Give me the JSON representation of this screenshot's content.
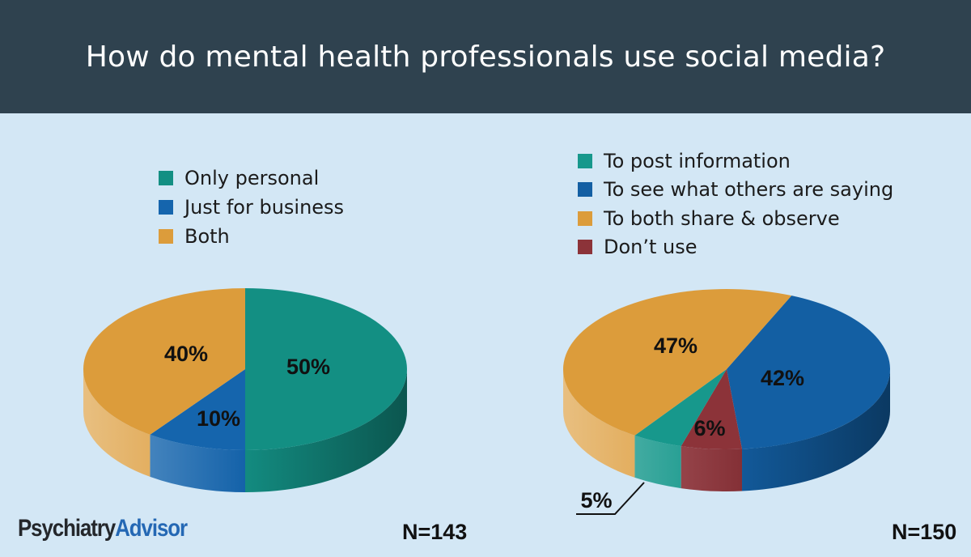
{
  "header": {
    "title": "How do mental health professionals use social media?"
  },
  "brand": {
    "part1": "Psychiatry",
    "part2": "Advisor"
  },
  "chart_data": [
    {
      "type": "pie",
      "title": "",
      "n_label": "N=143",
      "legend_position": "top-left",
      "slices": [
        {
          "name": "Only personal",
          "value": 50,
          "label": "50%",
          "color": "#138f83"
        },
        {
          "name": "Just for business",
          "value": 10,
          "label": "10%",
          "color": "#1565ad"
        },
        {
          "name": "Both",
          "value": 40,
          "label": "40%",
          "color": "#dc9c3b"
        }
      ]
    },
    {
      "type": "pie",
      "title": "",
      "n_label": "N=150",
      "legend_position": "top",
      "slices": [
        {
          "name": "To post information",
          "value": 5,
          "label": "5%",
          "color": "#17988c"
        },
        {
          "name": "To see what others are saying",
          "value": 42,
          "label": "42%",
          "color": "#135fa3"
        },
        {
          "name": "To both share & observe",
          "value": 47,
          "label": "47%",
          "color": "#dc9c3b"
        },
        {
          "name": "Don’t use",
          "value": 6,
          "label": "6%",
          "color": "#8c3339"
        }
      ]
    }
  ]
}
